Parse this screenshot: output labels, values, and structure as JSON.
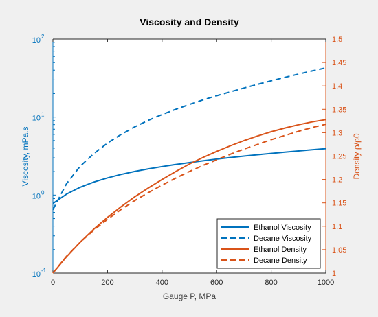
{
  "chart_data": {
    "type": "line",
    "title": "Viscosity and Density",
    "xlabel": "Gauge P, MPa",
    "xlim": [
      0,
      1000
    ],
    "x_ticks": [
      "0",
      "200",
      "400",
      "600",
      "800",
      "1000"
    ],
    "grid": false,
    "legend_position": "bottom-right",
    "left_axis": {
      "label": "Viscosity, mPa.s",
      "scale": "log",
      "ylim": [
        0.1,
        100
      ],
      "ticks": [
        {
          "base": "10",
          "exp": "-1"
        },
        {
          "base": "10",
          "exp": "0"
        },
        {
          "base": "10",
          "exp": "1"
        },
        {
          "base": "10",
          "exp": "2"
        }
      ],
      "color": "#0072BD"
    },
    "right_axis": {
      "label": "Density ρ/ρ0",
      "scale": "linear",
      "ylim": [
        1,
        1.5
      ],
      "ticks": [
        "1",
        "1.05",
        "1.1",
        "1.15",
        "1.2",
        "1.25",
        "1.3",
        "1.35",
        "1.4",
        "1.45",
        "1.5"
      ],
      "color": "#D95319"
    },
    "series": [
      {
        "name": "Ethanol Viscosity",
        "axis": "left",
        "color": "#0072BD",
        "dash": "solid",
        "x": [
          0,
          50,
          100,
          150,
          200,
          250,
          300,
          350,
          400,
          450,
          500,
          550,
          600,
          650,
          700,
          750,
          800,
          850,
          900,
          950,
          1000
        ],
        "y": [
          0.78,
          1.03,
          1.26,
          1.47,
          1.66,
          1.84,
          2.01,
          2.17,
          2.32,
          2.47,
          2.61,
          2.75,
          2.89,
          3.03,
          3.16,
          3.29,
          3.42,
          3.55,
          3.68,
          3.81,
          3.94
        ]
      },
      {
        "name": "Decane Viscosity",
        "axis": "left",
        "color": "#0072BD",
        "dash": "dashed",
        "x": [
          0,
          50,
          100,
          150,
          200,
          250,
          300,
          350,
          400,
          450,
          500,
          550,
          600,
          650,
          700,
          750,
          800,
          850,
          900,
          950,
          1000
        ],
        "y": [
          0.65,
          1.4,
          2.35,
          3.4,
          4.65,
          6.0,
          7.5,
          9.1,
          10.8,
          12.6,
          14.5,
          16.6,
          18.8,
          21.1,
          23.6,
          26.3,
          29.2,
          32.3,
          35.6,
          39.1,
          42.8
        ]
      },
      {
        "name": "Ethanol Density",
        "axis": "right",
        "color": "#D95319",
        "dash": "solid",
        "x": [
          0,
          50,
          100,
          150,
          200,
          250,
          300,
          350,
          400,
          450,
          500,
          550,
          600,
          650,
          700,
          750,
          800,
          850,
          900,
          950,
          1000
        ],
        "y": [
          1.0,
          1.035,
          1.066,
          1.094,
          1.119,
          1.142,
          1.163,
          1.182,
          1.2,
          1.217,
          1.233,
          1.247,
          1.26,
          1.272,
          1.283,
          1.293,
          1.302,
          1.31,
          1.317,
          1.323,
          1.328
        ]
      },
      {
        "name": "Decane Density",
        "axis": "right",
        "color": "#D95319",
        "dash": "dashed",
        "x": [
          0,
          50,
          100,
          150,
          200,
          250,
          300,
          350,
          400,
          450,
          500,
          550,
          600,
          650,
          700,
          750,
          800,
          850,
          900,
          950,
          1000
        ],
        "y": [
          1.0,
          1.036,
          1.066,
          1.092,
          1.115,
          1.136,
          1.155,
          1.172,
          1.188,
          1.203,
          1.217,
          1.23,
          1.242,
          1.254,
          1.265,
          1.275,
          1.285,
          1.294,
          1.303,
          1.311,
          1.318
        ]
      }
    ]
  }
}
